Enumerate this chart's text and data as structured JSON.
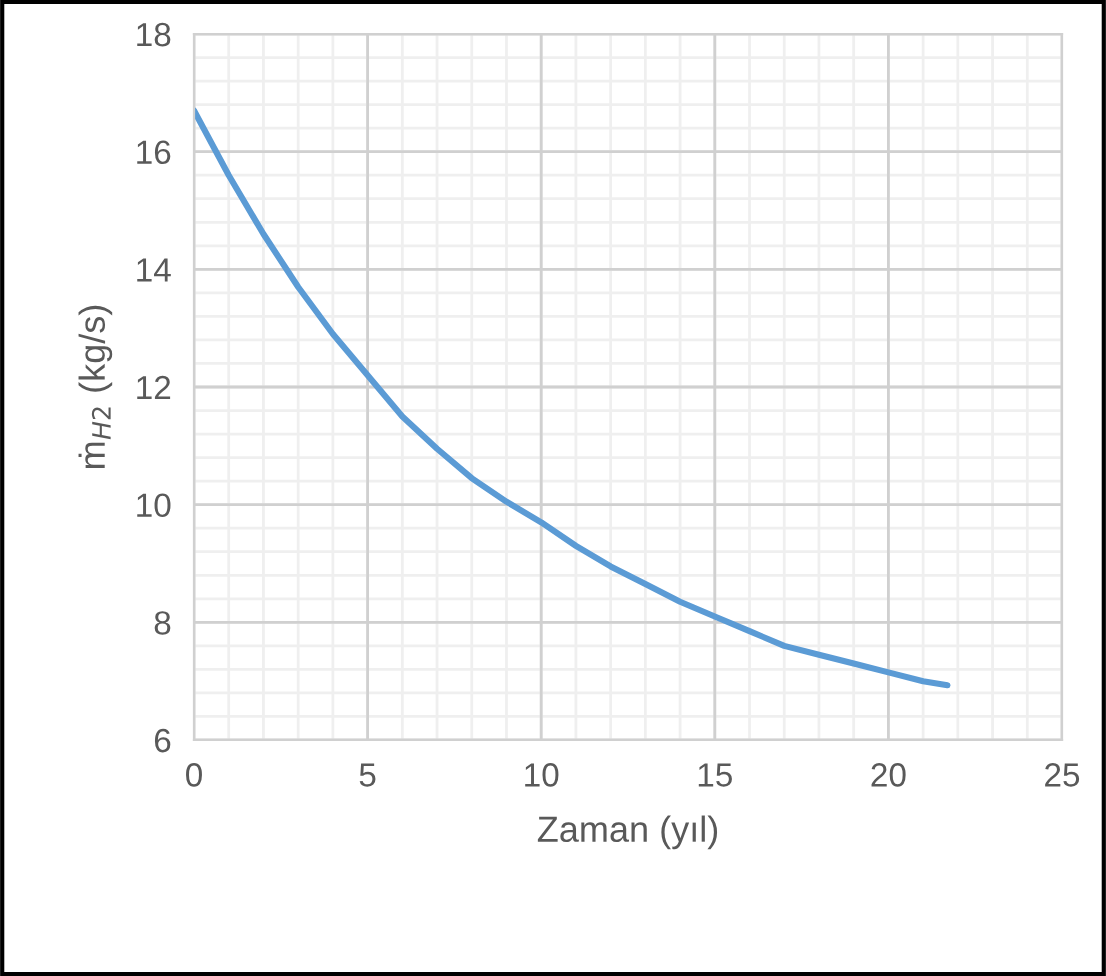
{
  "chart_data": {
    "type": "line",
    "xlabel": "Zaman (yıl)",
    "ylabel": "ṁ$_{H2}$ (kg/s)",
    "xlim": [
      0,
      25
    ],
    "xticks": [
      0,
      5,
      10,
      15,
      20,
      25
    ],
    "ylim": [
      6,
      18
    ],
    "yticks": [
      6,
      8,
      10,
      12,
      14,
      16,
      18
    ],
    "grid": true,
    "series": [
      {
        "color": "#5b9bd5",
        "x": [
          0,
          1,
          2,
          3,
          4,
          5,
          6,
          7,
          8,
          9,
          10,
          11,
          12,
          13,
          14,
          15,
          16,
          17,
          18,
          19,
          20,
          21,
          21.7
        ],
        "values": [
          16.7,
          15.6,
          14.6,
          13.7,
          12.9,
          12.2,
          11.5,
          10.95,
          10.45,
          10.05,
          9.7,
          9.3,
          8.95,
          8.65,
          8.35,
          8.1,
          7.85,
          7.6,
          7.45,
          7.3,
          7.15,
          7.0,
          6.93
        ]
      }
    ]
  }
}
